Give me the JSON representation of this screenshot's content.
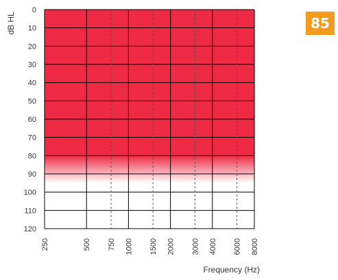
{
  "score": {
    "value": "85",
    "color": "#f49a1c"
  },
  "chart_data": {
    "type": "heatmap",
    "title": "",
    "xlabel": "Frequency (Hz)",
    "ylabel": "dB HL",
    "x_ticks": [
      "250",
      "500",
      "750",
      "1000",
      "1500",
      "2000",
      "3000",
      "4000",
      "6000",
      "8000"
    ],
    "x_major": [
      "250",
      "500",
      "1000",
      "2000",
      "4000",
      "8000"
    ],
    "x_minor": [
      "750",
      "1500",
      "3000",
      "6000"
    ],
    "y_ticks": [
      0,
      10,
      20,
      30,
      40,
      50,
      60,
      70,
      80,
      90,
      100,
      110,
      120
    ],
    "ylim": [
      0,
      120
    ],
    "y_reversed": true,
    "region": {
      "from_db": 0,
      "solid_to_db": 80,
      "fade_to_db": 95,
      "color": "#ee2a44"
    },
    "grid": true
  }
}
